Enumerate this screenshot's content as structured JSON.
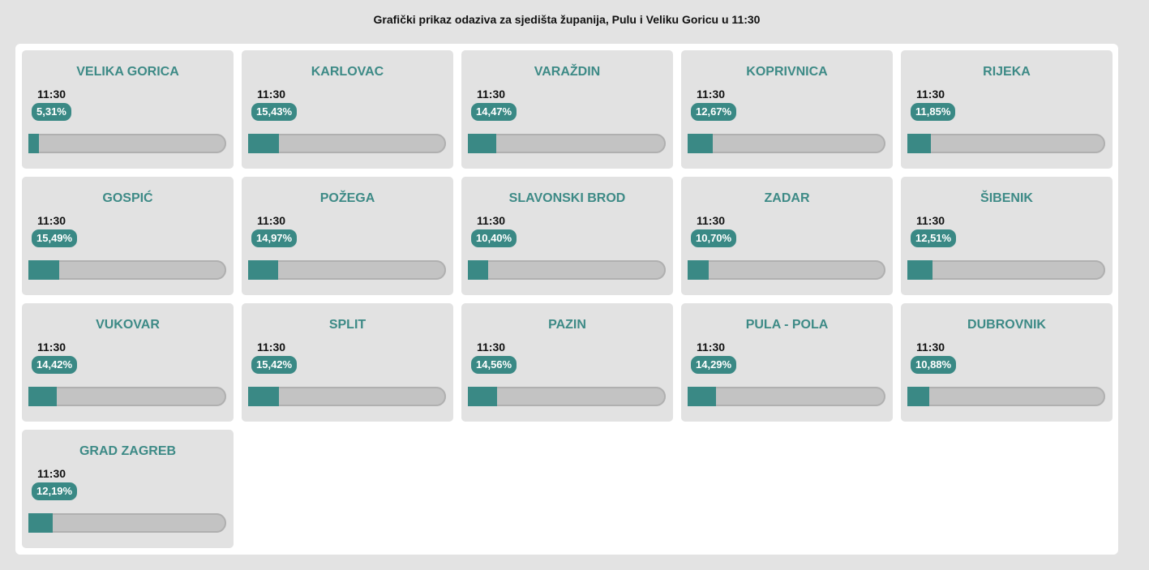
{
  "page": {
    "title": "Grafički prikaz odaziva za sjedišta županija, Pulu i Veliku Goricu u 11:30"
  },
  "colors": {
    "accent": "#3a8985",
    "title": "#3d8a86",
    "card_bg": "#e2e2e2",
    "track": "#c3c3c3"
  },
  "cities": [
    {
      "name": "VELIKA GORICA",
      "time": "11:30",
      "percent_label": "5,31%",
      "percent": 5.31
    },
    {
      "name": "KARLOVAC",
      "time": "11:30",
      "percent_label": "15,43%",
      "percent": 15.43
    },
    {
      "name": "VARAŽDIN",
      "time": "11:30",
      "percent_label": "14,47%",
      "percent": 14.47
    },
    {
      "name": "KOPRIVNICA",
      "time": "11:30",
      "percent_label": "12,67%",
      "percent": 12.67
    },
    {
      "name": "RIJEKA",
      "time": "11:30",
      "percent_label": "11,85%",
      "percent": 11.85
    },
    {
      "name": "GOSPIĆ",
      "time": "11:30",
      "percent_label": "15,49%",
      "percent": 15.49
    },
    {
      "name": "POŽEGA",
      "time": "11:30",
      "percent_label": "14,97%",
      "percent": 14.97
    },
    {
      "name": "SLAVONSKI BROD",
      "time": "11:30",
      "percent_label": "10,40%",
      "percent": 10.4
    },
    {
      "name": "ZADAR",
      "time": "11:30",
      "percent_label": "10,70%",
      "percent": 10.7
    },
    {
      "name": "ŠIBENIK",
      "time": "11:30",
      "percent_label": "12,51%",
      "percent": 12.51
    },
    {
      "name": "VUKOVAR",
      "time": "11:30",
      "percent_label": "14,42%",
      "percent": 14.42
    },
    {
      "name": "SPLIT",
      "time": "11:30",
      "percent_label": "15,42%",
      "percent": 15.42
    },
    {
      "name": "PAZIN",
      "time": "11:30",
      "percent_label": "14,56%",
      "percent": 14.56
    },
    {
      "name": "PULA - POLA",
      "time": "11:30",
      "percent_label": "14,29%",
      "percent": 14.29
    },
    {
      "name": "DUBROVNIK",
      "time": "11:30",
      "percent_label": "10,88%",
      "percent": 10.88
    },
    {
      "name": "GRAD ZAGREB",
      "time": "11:30",
      "percent_label": "12,19%",
      "percent": 12.19
    }
  ]
}
